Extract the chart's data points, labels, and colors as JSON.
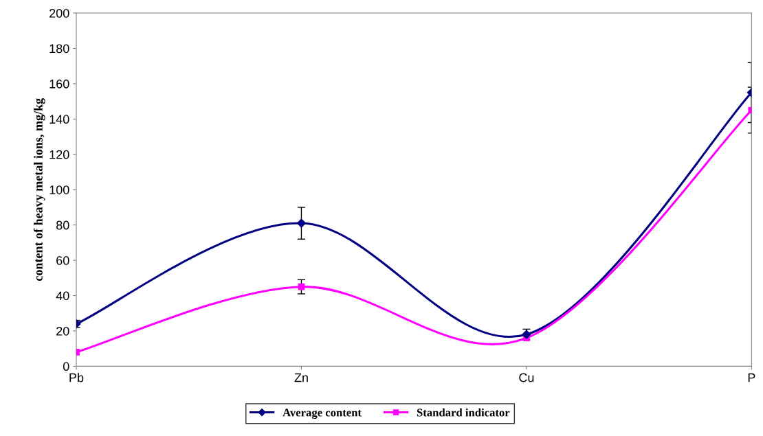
{
  "chart_data": {
    "type": "line",
    "ylabel": "content of heavy metal ions, mg/kg",
    "categories": [
      "Pb",
      "Zn",
      "Cu",
      "P"
    ],
    "series": [
      {
        "name": "Average content",
        "color": "#000080",
        "values": [
          24,
          81,
          18,
          155
        ],
        "errors": [
          2,
          9,
          3,
          17
        ],
        "marker": "diamond"
      },
      {
        "name": "Standard indicator",
        "color": "#ff00ff",
        "values": [
          8,
          45,
          16,
          145
        ],
        "errors": [
          null,
          4,
          null,
          13
        ],
        "marker": "square"
      }
    ],
    "ylim": [
      0,
      200
    ],
    "yticks": [
      0,
      20,
      40,
      60,
      80,
      100,
      120,
      140,
      160,
      180,
      200
    ],
    "grid": false,
    "legend": "bottom",
    "line_style": "solid"
  }
}
